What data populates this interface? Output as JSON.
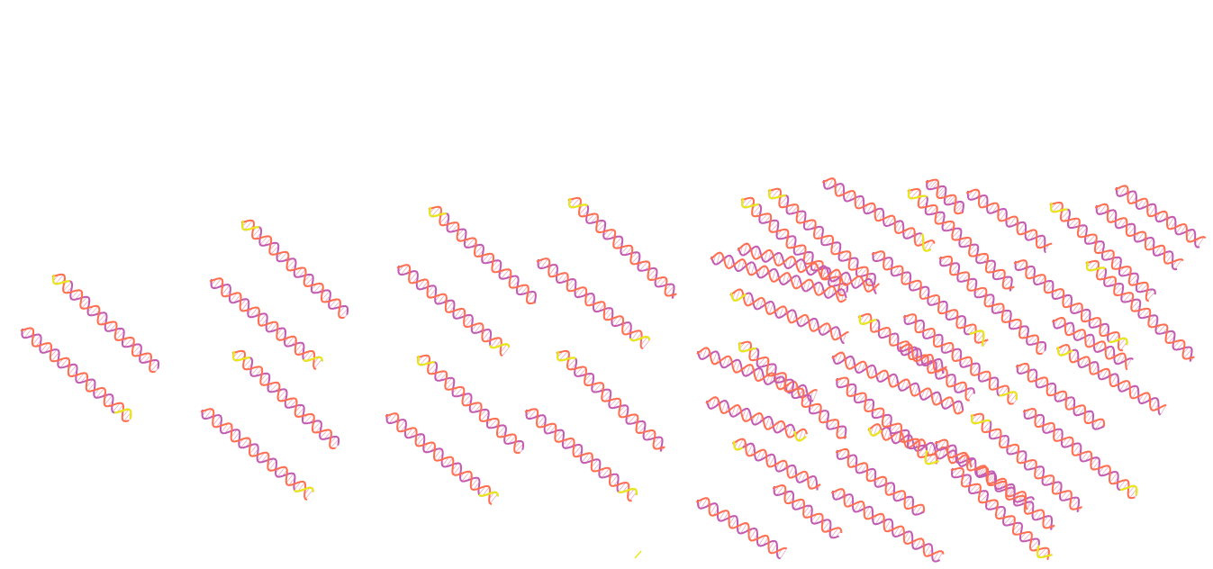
{
  "figure": {
    "description_free": true,
    "groups": [
      {
        "name": "group-1",
        "helix_count": 2
      },
      {
        "name": "group-2",
        "helix_count": 4
      },
      {
        "name": "group-3",
        "helix_count": 8
      },
      {
        "name": "group-4",
        "helix_count": 39
      }
    ],
    "colors": {
      "strand_a": "#c25bb1",
      "strand_b": "#ff6e4e",
      "strand_c": "#e07aa0",
      "tip": "#e8e81a",
      "background": "#ffffff"
    },
    "icon": "dna-double-helix-icon"
  }
}
